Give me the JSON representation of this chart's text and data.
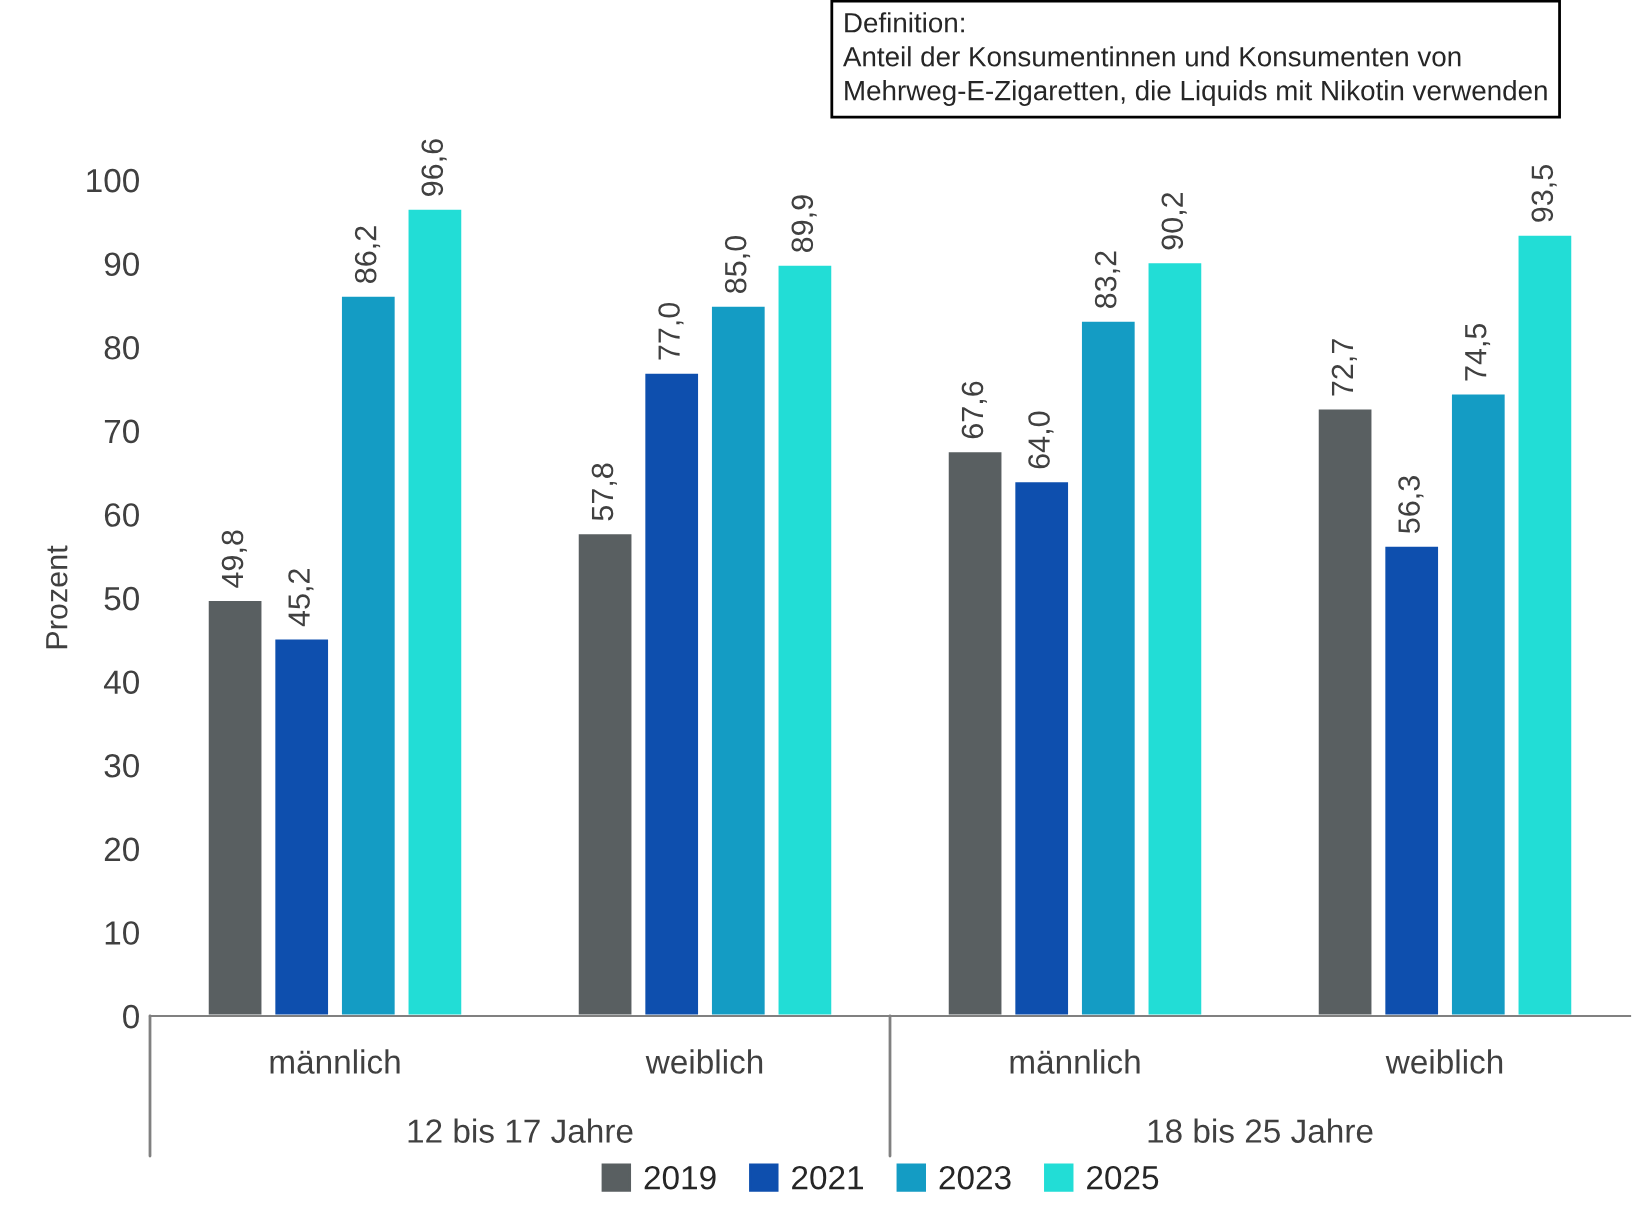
{
  "chart_data": {
    "type": "bar",
    "ylabel": "Prozent",
    "categories": [
      "männlich",
      "weiblich",
      "männlich",
      "weiblich"
    ],
    "series": [
      {
        "name": "2019",
        "color": "#595f61",
        "values": [
          49.8,
          57.8,
          67.6,
          72.7
        ]
      },
      {
        "name": "2021",
        "color": "#0e4fae",
        "values": [
          45.2,
          77.0,
          64.0,
          56.3
        ]
      },
      {
        "name": "2023",
        "color": "#149cc4",
        "values": [
          86.2,
          85.0,
          83.2,
          74.5
        ]
      },
      {
        "name": "2025",
        "color": "#22ddd6",
        "values": [
          96.6,
          89.9,
          90.2,
          93.5
        ]
      }
    ],
    "value_labels": [
      [
        "49,8",
        "57,8",
        "67,6",
        "72,7"
      ],
      [
        "45,2",
        "77,0",
        "64,0",
        "56,3"
      ],
      [
        "86,2",
        "85,0",
        "83,2",
        "74,5"
      ],
      [
        "96,6",
        "89,9",
        "90,2",
        "93,5"
      ]
    ],
    "ylim": [
      0,
      100
    ],
    "yticks": [
      0,
      10,
      20,
      30,
      40,
      50,
      60,
      70,
      80,
      90,
      100
    ],
    "grid": false,
    "legend": "bottom",
    "annotations": [
      "Definition:\nAnteil der Konsumentinnen und Konsumenten von\nMehrweg-E-Zigaretten, die Liquids mit Nikotin verwenden",
      "12 bis 17 Jahre",
      "18 bis 25 Jahre"
    ]
  }
}
